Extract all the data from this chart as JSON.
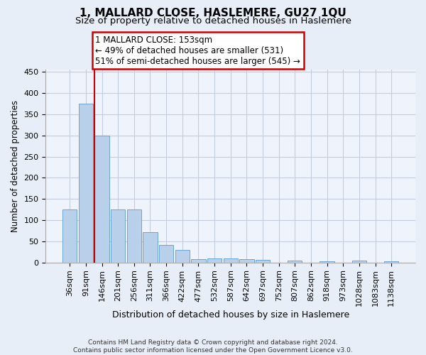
{
  "title": "1, MALLARD CLOSE, HASLEMERE, GU27 1QU",
  "subtitle": "Size of property relative to detached houses in Haslemere",
  "xlabel": "Distribution of detached houses by size in Haslemere",
  "ylabel": "Number of detached properties",
  "footer_line1": "Contains HM Land Registry data © Crown copyright and database right 2024.",
  "footer_line2": "Contains public sector information licensed under the Open Government Licence v3.0.",
  "annotation_line1": "1 MALLARD CLOSE: 153sqm",
  "annotation_line2": "← 49% of detached houses are smaller (531)",
  "annotation_line3": "51% of semi-detached houses are larger (545) →",
  "bar_labels": [
    "36sqm",
    "91sqm",
    "146sqm",
    "201sqm",
    "256sqm",
    "311sqm",
    "366sqm",
    "422sqm",
    "477sqm",
    "532sqm",
    "587sqm",
    "642sqm",
    "697sqm",
    "752sqm",
    "807sqm",
    "862sqm",
    "918sqm",
    "973sqm",
    "1028sqm",
    "1083sqm",
    "1138sqm"
  ],
  "bar_values": [
    125,
    375,
    300,
    125,
    125,
    72,
    42,
    30,
    8,
    10,
    10,
    8,
    6,
    0,
    4,
    0,
    3,
    0,
    4,
    0,
    3
  ],
  "bar_color": "#b8d0ea",
  "bar_edge_color": "#5b9bd5",
  "red_line_bar_index": 2,
  "annotation_box_edge_color": "#cc0000",
  "annotation_box_face_color": "#ffffff",
  "bg_color": "#e8eef8",
  "plot_bg_color": "#eef3fc",
  "grid_color": "#c5cedf",
  "ylim": [
    0,
    455
  ],
  "yticks": [
    0,
    50,
    100,
    150,
    200,
    250,
    300,
    350,
    400,
    450
  ],
  "title_fontsize": 11,
  "subtitle_fontsize": 9.5,
  "ylabel_fontsize": 8.5,
  "xlabel_fontsize": 9,
  "tick_fontsize": 8,
  "footer_fontsize": 6.5
}
